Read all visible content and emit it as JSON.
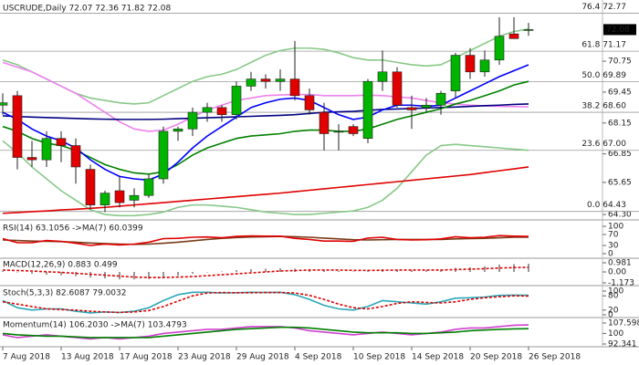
{
  "chart_data": [
    {
      "type": "candlestick",
      "title": "USCRUDE,Daily 72.07 72.36 71.82 72.08",
      "categories": [
        "7 Aug 2018",
        null,
        null,
        null,
        "13 Aug 2018",
        null,
        null,
        null,
        "17 Aug 2018",
        null,
        null,
        null,
        "23 Aug 2018",
        null,
        null,
        null,
        "29 Aug 2018",
        null,
        null,
        null,
        "4 Sep 2018",
        null,
        null,
        null,
        "10 Sep 2018",
        null,
        null,
        null,
        "14 Sep 2018",
        null,
        null,
        null,
        "20 Sep 2018",
        null,
        null,
        null,
        "26 Sep 2018"
      ],
      "open": [
        68.9,
        69.3,
        66.7,
        66.6,
        67.5,
        67.2,
        66.2,
        64.7,
        65.3,
        64.9,
        65.1,
        65.8,
        67.8,
        67.9,
        68.6,
        68.8,
        68.5,
        69.7,
        70.0,
        69.9,
        70.0,
        69.3,
        68.6,
        67.8,
        68.0,
        67.5,
        69.9,
        70.3,
        68.8,
        68.8,
        68.9,
        69.5,
        71.0,
        70.3,
        70.8,
        71.9,
        72.07
      ],
      "high": [
        69.4,
        69.5,
        67.4,
        67.8,
        67.8,
        67.5,
        66.4,
        65.3,
        65.9,
        65.4,
        66.0,
        68.0,
        68.0,
        68.8,
        69.0,
        68.9,
        69.9,
        70.3,
        70.2,
        70.4,
        71.6,
        69.6,
        69.0,
        68.1,
        68.1,
        70.0,
        71.2,
        70.5,
        69.3,
        69.2,
        69.5,
        71.1,
        71.3,
        71.2,
        72.6,
        72.6,
        72.36
      ],
      "low": [
        68.5,
        66.2,
        66.3,
        66.3,
        66.5,
        65.6,
        64.5,
        64.4,
        64.6,
        64.6,
        65.0,
        65.6,
        67.4,
        67.6,
        68.2,
        68.2,
        68.3,
        69.5,
        69.6,
        69.5,
        69.1,
        68.5,
        67.0,
        67.0,
        67.6,
        67.3,
        69.5,
        68.8,
        67.9,
        68.6,
        68.5,
        69.2,
        70.0,
        70.1,
        70.6,
        71.7,
        71.82
      ],
      "close": [
        69.0,
        66.7,
        66.6,
        67.5,
        67.2,
        66.3,
        64.7,
        65.2,
        64.8,
        65.1,
        65.8,
        67.8,
        67.9,
        68.6,
        68.8,
        68.5,
        69.7,
        70.0,
        69.9,
        70.0,
        69.3,
        68.7,
        67.7,
        67.8,
        67.7,
        69.9,
        70.3,
        68.9,
        68.7,
        68.9,
        69.4,
        71.0,
        70.3,
        70.8,
        71.8,
        71.7,
        72.08
      ],
      "up_color": "#00b400",
      "down_color": "#e00000",
      "series": [
        {
          "color": "#88c888",
          "values": [
            70.8,
            70.6,
            70.3,
            70.0,
            69.7,
            69.4,
            69.2,
            69.1,
            69.0,
            68.95,
            69.0,
            69.3,
            69.6,
            69.9,
            70.1,
            70.2,
            70.4,
            70.7,
            71.0,
            71.2,
            71.3,
            71.3,
            71.25,
            71.1,
            70.9,
            70.8,
            70.8,
            70.7,
            70.6,
            70.55,
            70.6,
            70.9,
            71.2,
            71.5,
            71.8,
            72.0,
            72.1
          ]
        },
        {
          "color": "#88c888",
          "values": [
            67.4,
            66.9,
            66.3,
            65.8,
            65.3,
            64.9,
            64.5,
            64.3,
            64.25,
            64.25,
            64.3,
            64.4,
            64.6,
            64.7,
            64.7,
            64.65,
            64.6,
            64.5,
            64.4,
            64.35,
            64.3,
            64.3,
            64.35,
            64.4,
            64.45,
            64.6,
            64.9,
            65.4,
            66.1,
            66.8,
            67.2,
            67.25,
            67.2,
            67.15,
            67.1,
            67.05,
            67.0
          ]
        },
        {
          "color": "#ee82ee",
          "values": [
            70.7,
            70.5,
            70.3,
            70.0,
            69.7,
            69.4,
            69.0,
            68.6,
            68.2,
            67.9,
            67.8,
            67.85,
            68.1,
            68.4,
            68.7,
            68.9,
            69.1,
            69.2,
            69.3,
            69.33,
            69.35,
            69.35,
            69.3,
            69.3,
            69.3,
            69.32,
            69.3,
            69.25,
            69.2,
            69.1,
            69.0,
            68.95,
            68.9,
            68.87,
            68.85,
            68.84,
            68.83
          ]
        },
        {
          "color": "#000080",
          "values": [
            68.45,
            68.42,
            68.4,
            68.38,
            68.36,
            68.34,
            68.32,
            68.31,
            68.3,
            68.3,
            68.3,
            68.31,
            68.33,
            68.35,
            68.37,
            68.39,
            68.41,
            68.43,
            68.45,
            68.47,
            68.5,
            68.55,
            68.6,
            68.62,
            68.64,
            68.68,
            68.72,
            68.74,
            68.76,
            68.78,
            68.8,
            68.82,
            68.85,
            68.88,
            68.9,
            68.93,
            68.95
          ]
        },
        {
          "color": "#e00000",
          "values": [
            64.35,
            64.38,
            64.42,
            64.45,
            64.49,
            64.52,
            64.56,
            64.6,
            64.65,
            64.7,
            64.75,
            64.8,
            64.85,
            64.9,
            64.95,
            65.0,
            65.05,
            65.1,
            65.15,
            65.2,
            65.26,
            65.32,
            65.38,
            65.44,
            65.5,
            65.56,
            65.62,
            65.68,
            65.74,
            65.8,
            65.86,
            65.92,
            65.98,
            66.06,
            66.14,
            66.22,
            66.3
          ]
        },
        {
          "color": "#008000",
          "values": [
            68.0,
            67.8,
            67.5,
            67.3,
            67.2,
            67.0,
            66.7,
            66.4,
            66.2,
            66.05,
            66.0,
            66.1,
            66.4,
            66.8,
            67.1,
            67.3,
            67.5,
            67.6,
            67.65,
            67.7,
            67.8,
            67.85,
            67.85,
            67.8,
            67.8,
            67.9,
            68.1,
            68.3,
            68.45,
            68.6,
            68.75,
            68.95,
            69.1,
            69.3,
            69.5,
            69.75,
            69.9
          ]
        },
        {
          "color": "#0000ff",
          "values": [
            68.6,
            68.3,
            67.9,
            67.6,
            67.4,
            67.1,
            66.6,
            66.2,
            65.9,
            65.8,
            65.75,
            66.0,
            66.5,
            67.1,
            67.6,
            68.0,
            68.4,
            68.8,
            69.0,
            69.15,
            69.2,
            69.1,
            68.8,
            68.5,
            68.3,
            68.4,
            68.7,
            68.9,
            68.9,
            68.85,
            68.9,
            69.2,
            69.5,
            69.8,
            70.1,
            70.35,
            70.6
          ]
        }
      ],
      "fib": [
        {
          "label": "76.4 72.77",
          "value": 72.77
        },
        {
          "label": "61.8 71.17",
          "value": 71.17
        },
        {
          "label": "50.0 69.89",
          "value": 69.89
        },
        {
          "label": "38.2 68.60",
          "value": 68.6
        },
        {
          "label": "23.6 67.00",
          "value": 67.0
        },
        {
          "label": "0.0 64.43",
          "value": 64.43
        }
      ],
      "last_price": 72.08,
      "ylim": [
        64.11,
        73.21
      ],
      "yticks": [
        {
          "value": 64.3,
          "label": "64.30"
        },
        65.65,
        66.85,
        68.15,
        69.45,
        70.75
      ]
    },
    {
      "type": "line",
      "title": "RSI(14) 63.1056 ->MA(7) 60.0399",
      "series": [
        {
          "color": "#7a3b1a",
          "values": [
            50,
            48,
            46,
            45,
            44,
            42,
            39,
            37,
            35,
            34,
            35,
            38,
            42,
            47,
            52,
            56,
            59,
            61,
            62,
            63,
            62,
            60,
            57,
            54,
            51,
            50,
            51,
            52,
            52,
            52,
            52,
            54,
            55,
            56,
            58,
            60,
            60.0399
          ]
        },
        {
          "color": "#e00000",
          "values": [
            55,
            40,
            40,
            48,
            45,
            38,
            30,
            35,
            32,
            35,
            42,
            55,
            56,
            60,
            61,
            58,
            63,
            65,
            64,
            64,
            56,
            52,
            46,
            46,
            45,
            57,
            60,
            52,
            50,
            51,
            54,
            62,
            58,
            60,
            66,
            64,
            63.1056
          ]
        }
      ],
      "ylim": [
        0,
        100
      ],
      "yticks": [
        100,
        70,
        30,
        0
      ]
    },
    {
      "type": "bar",
      "title": "MACD(12,26,9) 0.883 0.499",
      "color": "#999999",
      "values": [
        0.1,
        -0.05,
        -0.2,
        -0.3,
        -0.35,
        -0.45,
        -0.6,
        -0.7,
        -0.8,
        -0.8,
        -0.75,
        -0.55,
        -0.4,
        -0.2,
        -0.05,
        0.05,
        0.2,
        0.3,
        0.35,
        0.4,
        0.35,
        0.3,
        0.2,
        0.1,
        0.05,
        0.15,
        0.3,
        0.25,
        0.2,
        0.2,
        0.25,
        0.45,
        0.5,
        0.6,
        0.8,
        0.85,
        0.883
      ],
      "series": [
        {
          "color": "#e00000",
          "dashed": true,
          "values": [
            0.2,
            0.15,
            0.1,
            0.02,
            -0.05,
            -0.15,
            -0.25,
            -0.35,
            -0.45,
            -0.55,
            -0.6,
            -0.6,
            -0.55,
            -0.5,
            -0.4,
            -0.3,
            -0.2,
            -0.1,
            0.0,
            0.1,
            0.15,
            0.2,
            0.2,
            0.2,
            0.17,
            0.16,
            0.18,
            0.2,
            0.2,
            0.2,
            0.2,
            0.25,
            0.3,
            0.35,
            0.42,
            0.47,
            0.499
          ]
        }
      ],
      "ylim": [
        -1.173,
        0.981
      ],
      "yticks": [
        0.981,
        {
          "value": 0,
          "label": "0.00"
        },
        -1.173
      ]
    },
    {
      "type": "line",
      "title": "Stoch(5,3,3) 82.6087 79.0032",
      "series": [
        {
          "color": "#2aa7b8",
          "values": [
            60,
            30,
            20,
            25,
            25,
            15,
            8,
            12,
            10,
            15,
            30,
            60,
            85,
            95,
            95,
            92,
            93,
            95,
            94,
            95,
            85,
            65,
            40,
            25,
            20,
            35,
            60,
            55,
            50,
            45,
            55,
            70,
            72,
            75,
            82,
            83,
            82.6087
          ]
        },
        {
          "color": "#e00000",
          "dashed": true,
          "values": [
            55,
            45,
            35,
            25,
            22,
            20,
            15,
            12,
            10,
            12,
            18,
            35,
            58,
            80,
            92,
            94,
            93,
            93,
            94,
            94,
            92,
            82,
            65,
            45,
            30,
            25,
            35,
            48,
            55,
            52,
            50,
            55,
            65,
            72,
            76,
            80,
            79.0032
          ]
        }
      ],
      "ylim": [
        0,
        100
      ],
      "yticks": [
        100,
        80,
        20,
        0
      ]
    },
    {
      "type": "line",
      "title": "Momentum(14) 106.2030 ->MA(7) 103.4793",
      "series": [
        {
          "color": "#d040d0",
          "values": [
            99,
            97,
            98,
            99,
            98,
            97,
            96,
            97,
            96,
            97,
            98,
            100,
            101,
            102,
            103,
            103,
            104,
            105,
            105,
            105,
            104,
            102,
            101,
            100,
            99,
            100,
            101,
            100,
            99,
            100,
            101,
            103,
            104,
            104,
            105,
            106,
            106.203
          ]
        },
        {
          "color": "#008000",
          "values": [
            100,
            99,
            98.5,
            98,
            98,
            97.5,
            97,
            97,
            97,
            97,
            97,
            98,
            99,
            100,
            101,
            102,
            103,
            103.5,
            104,
            104.5,
            104.5,
            104,
            103,
            102,
            101,
            100.5,
            100.5,
            100.5,
            100,
            100,
            100.5,
            101,
            102,
            102.5,
            103,
            103.3,
            103.4793
          ]
        }
      ],
      "ylim": [
        92.341,
        107.5986
      ],
      "yticks": [
        107.5986,
        100,
        92.341
      ]
    }
  ]
}
